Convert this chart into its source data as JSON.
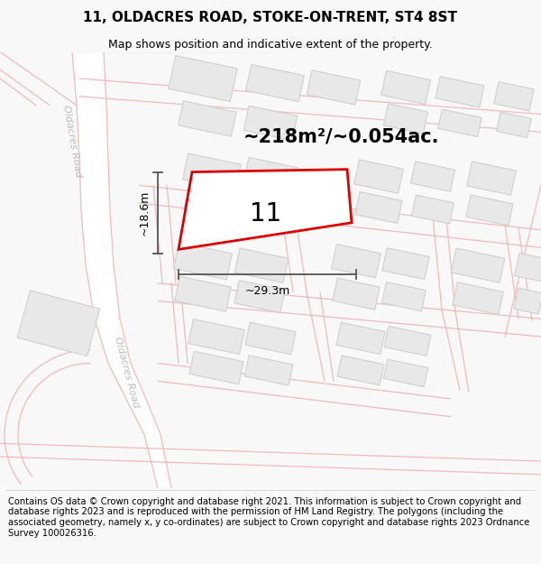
{
  "title": "11, OLDACRES ROAD, STOKE-ON-TRENT, ST4 8ST",
  "subtitle": "Map shows position and indicative extent of the property.",
  "area_label": "~218m²/~0.054ac.",
  "number_label": "11",
  "width_label": "~29.3m",
  "height_label": "~18.6m",
  "footer": "Contains OS data © Crown copyright and database right 2021. This information is subject to Crown copyright and database rights 2023 and is reproduced with the permission of HM Land Registry. The polygons (including the associated geometry, namely x, y co-ordinates) are subject to Crown copyright and database rights 2023 Ordnance Survey 100026316.",
  "bg_color": "#f8f8f8",
  "map_bg": "#ffffff",
  "road_fill": "#ffffff",
  "road_line_color": "#f0b0b0",
  "road_center_color": "#e8c8c8",
  "building_color": "#e8e8e8",
  "building_edge": "#cccccc",
  "plot_color": "#dd0000",
  "dim_color": "#555555",
  "label_color": "#aaaaaa",
  "title_fontsize": 11,
  "subtitle_fontsize": 9,
  "area_fontsize": 15,
  "number_fontsize": 20,
  "footer_fontsize": 7.2,
  "road_name_color": "#bbbbbb",
  "road_name_size": 8
}
